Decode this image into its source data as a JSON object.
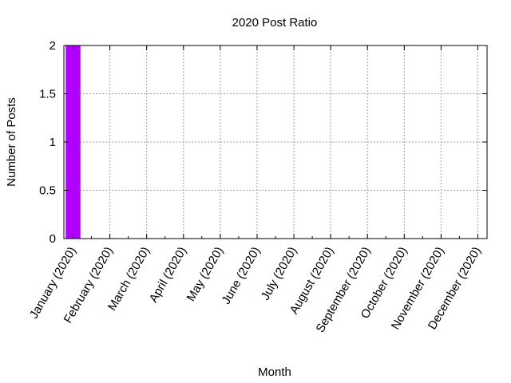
{
  "chart_data": {
    "type": "bar",
    "title": "2020 Post Ratio",
    "xlabel": "Month",
    "ylabel": "Number of Posts",
    "categories": [
      "January (2020)",
      "February (2020)",
      "March (2020)",
      "April (2020)",
      "May (2020)",
      "June (2020)",
      "July (2020)",
      "August (2020)",
      "September (2020)",
      "October (2020)",
      "November (2020)",
      "December (2020)"
    ],
    "values": [
      2,
      0,
      0,
      0,
      0,
      0,
      0,
      0,
      0,
      0,
      0,
      0
    ],
    "ylim": [
      0,
      2
    ],
    "yticks": [
      "0",
      "0.5",
      "1",
      "1.5",
      "2"
    ],
    "grid": true,
    "bar_color": "#b000ff"
  }
}
